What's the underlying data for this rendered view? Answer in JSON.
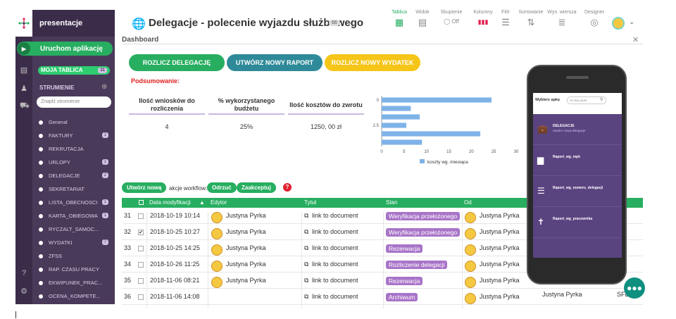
{
  "app": {
    "name": "presentacje",
    "run_label": "Uruchom aplikację"
  },
  "sidebar": {
    "my_table": {
      "label": "MOJA TABLICA",
      "count": "31"
    },
    "streams_label": "STRUMIENIE",
    "search_placeholder": "Znajdź strumienie",
    "items": [
      {
        "label": "General",
        "count": ""
      },
      {
        "label": "FAKTURY",
        "count": "1"
      },
      {
        "label": "REKRUTACJA",
        "count": ""
      },
      {
        "label": "URLOPY",
        "count": "1"
      },
      {
        "label": "DELEGACJE",
        "count": "2"
      },
      {
        "label": "SEKRETARIAT",
        "count": ""
      },
      {
        "label": "LISTA_OBECNOSCI",
        "count": "1"
      },
      {
        "label": "KARTA_OBIEGOWA",
        "count": "1"
      },
      {
        "label": "RYCZALT_SAMOC...",
        "count": ""
      },
      {
        "label": "WYDATKI",
        "count": "7"
      },
      {
        "label": "ZFSS",
        "count": ""
      },
      {
        "label": "RAP. CZASU PRACY",
        "count": ""
      },
      {
        "label": "EKWIPUNEK_PRAC...",
        "count": ""
      },
      {
        "label": "OCENA_KOMPETE...",
        "count": ""
      }
    ]
  },
  "header": {
    "title": "Delegacje - polecenie wyjazdu służbowego",
    "badge": "66",
    "tools": [
      {
        "label": "Tablica",
        "icon": "▦"
      },
      {
        "label": "Widok",
        "icon": "▤"
      },
      {
        "label": "Skupienie",
        "icon": "◯ Off"
      },
      {
        "label": "Kolumny",
        "icon": "▮▮▮"
      },
      {
        "label": "Filtr",
        "icon": "☰"
      },
      {
        "label": "Sortowanie",
        "icon": "⇅"
      },
      {
        "label": "Wys. wiersza",
        "icon": "≣"
      },
      {
        "label": "Designer",
        "icon": "◎"
      }
    ]
  },
  "dashboard": {
    "label": "Dashboard",
    "buttons": {
      "settle": "ROZLICZ DELEGACJĘ",
      "new_report": "UTWÓRZ NOWY RAPORT",
      "new_expense": "ROZLICZ NOWY WYDATEK"
    },
    "summary_title": "Podsumowanie:",
    "stats": [
      {
        "label": "Ilość wniosków do rozliczenia",
        "value": "4"
      },
      {
        "label": "% wykorzystanego budżetu",
        "value": "25%"
      },
      {
        "label": "Ilość kosztów do zwrotu",
        "value": "1250, 00 zł"
      }
    ]
  },
  "chart_data": {
    "type": "bar",
    "orientation": "horizontal",
    "categories": [
      "0",
      "",
      "",
      "2.5",
      "",
      ""
    ],
    "values": [
      24.5,
      6.5,
      8.5,
      5.5,
      22,
      9
    ],
    "xlim": [
      0,
      30
    ],
    "xticks": [
      "0",
      "5",
      "10",
      "15",
      "20",
      "25",
      "30"
    ],
    "legend": "koszty wg. miesiąca",
    "color": "#7eb3e8"
  },
  "table": {
    "create_label": "Utwórz nową",
    "workflow_label": "akcje workflow:",
    "reject_label": "Odrzuć",
    "accept_label": "Zaakceptuj",
    "columns": [
      "Data modyfikacji",
      "Edytor",
      "Tytuł",
      "Stan",
      "Od"
    ],
    "rows": [
      {
        "n": "31",
        "checked": "",
        "date": "2018-10-19 10:14",
        "editor": "Justyna Pyrka",
        "title": "link to document",
        "state": "Weryfikacja przełożonego",
        "from": "Justyna Pyrka"
      },
      {
        "n": "32",
        "checked": "✔",
        "date": "2018-10-25 10:27",
        "editor": "Justyna Pyrka",
        "title": "link to document",
        "state": "Weryfikacja przełożonego",
        "from": "Justyna Pyrka"
      },
      {
        "n": "33",
        "checked": "",
        "date": "2018-10-25 14:25",
        "editor": "Justyna Pyrka",
        "title": "link to document",
        "state": "Rezerwacja",
        "from": "Justyna Pyrka"
      },
      {
        "n": "34",
        "checked": "",
        "date": "2018-10-26 11:25",
        "editor": "Justyna Pyrka",
        "title": "link to document",
        "state": "Rozliczenie delegacji",
        "from": "Justyna Pyrka"
      },
      {
        "n": "35",
        "checked": "",
        "date": "2018-11-06 08:21",
        "editor": "Justyna Pyrka",
        "title": "link to document",
        "state": "Rezerwacja",
        "from": "Justyna Pyrka"
      },
      {
        "n": "36",
        "checked": "",
        "date": "2018-11-06 14:08",
        "editor": "",
        "title": "link to document",
        "state": "Archiwum",
        "from": "Justyna Pyrka"
      }
    ],
    "extra_cell": "Justyna Pyrka",
    "extra_cell2": "SFE"
  },
  "phone": {
    "select_label": "Wybierz apkę",
    "search_placeholder": "Szukaj apek",
    "items": [
      {
        "title": "DELEGACJE",
        "subtitle": "Utwórz nową delegacje",
        "icon": "💼"
      },
      {
        "title": "Raport_wg_mpk",
        "subtitle": "",
        "icon": "▆"
      },
      {
        "title": "Raport_wg_numeru_delegacji",
        "subtitle": "",
        "icon": "☰"
      },
      {
        "title": "Raport_wg_pracownika",
        "subtitle": "",
        "icon": "✝"
      }
    ]
  }
}
